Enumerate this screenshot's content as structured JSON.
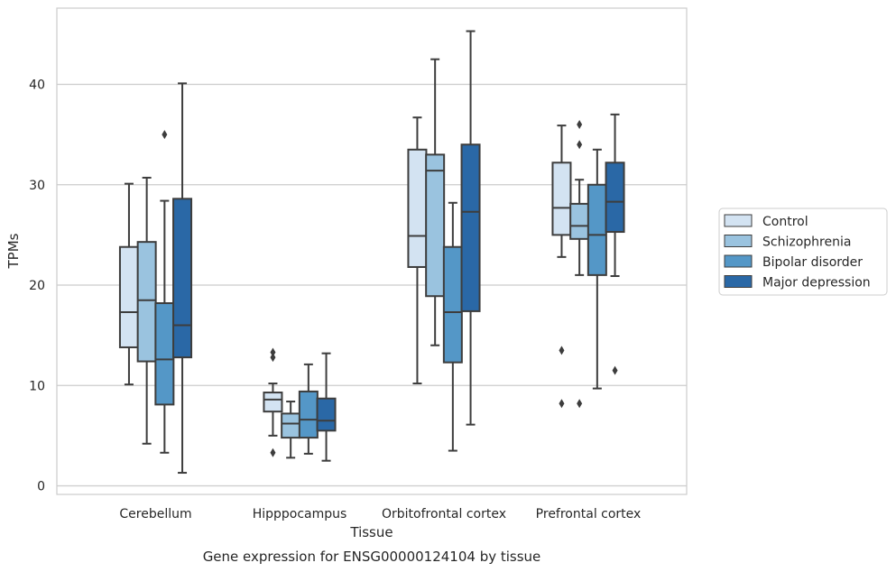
{
  "chart_data": {
    "type": "box",
    "caption": "Gene expression for ENSG00000124104 by tissue",
    "xlabel": "Tissue",
    "ylabel": "TPMs",
    "ylim": [
      -0.8,
      47.5
    ],
    "yticks": [
      0,
      10,
      20,
      30,
      40
    ],
    "grid": "horizontal",
    "legend_position": "right",
    "categories": [
      "Cerebellum",
      "Hipppocampus",
      "Orbitofrontal cortex",
      "Prefrontal cortex"
    ],
    "series": [
      {
        "name": "Control",
        "color": "#d3e3f2",
        "boxes": [
          {
            "whislo": 10.1,
            "q1": 13.8,
            "med": 17.3,
            "q3": 23.8,
            "whishi": 30.1,
            "fliers": []
          },
          {
            "whislo": 5.0,
            "q1": 7.4,
            "med": 8.6,
            "q3": 9.3,
            "whishi": 10.2,
            "fliers": [
              13.3,
              12.8,
              3.3
            ]
          },
          {
            "whislo": 10.2,
            "q1": 21.8,
            "med": 24.9,
            "q3": 33.5,
            "whishi": 36.7,
            "fliers": []
          },
          {
            "whislo": 22.8,
            "q1": 25.0,
            "med": 27.7,
            "q3": 32.2,
            "whishi": 35.9,
            "fliers": [
              13.5,
              8.2
            ]
          }
        ]
      },
      {
        "name": "Schizophrenia",
        "color": "#9ac3df",
        "boxes": [
          {
            "whislo": 4.2,
            "q1": 12.4,
            "med": 18.5,
            "q3": 24.3,
            "whishi": 30.7,
            "fliers": []
          },
          {
            "whislo": 2.8,
            "q1": 4.8,
            "med": 6.2,
            "q3": 7.2,
            "whishi": 8.4,
            "fliers": []
          },
          {
            "whislo": 14.0,
            "q1": 18.9,
            "med": 31.4,
            "q3": 33.0,
            "whishi": 42.5,
            "fliers": []
          },
          {
            "whislo": 21.0,
            "q1": 24.6,
            "med": 25.9,
            "q3": 28.1,
            "whishi": 30.5,
            "fliers": [
              36.0,
              34.0,
              8.2
            ]
          }
        ]
      },
      {
        "name": "Bipolar disorder",
        "color": "#5497c7",
        "boxes": [
          {
            "whislo": 3.3,
            "q1": 8.1,
            "med": 12.6,
            "q3": 18.2,
            "whishi": 28.4,
            "fliers": [
              35.0
            ]
          },
          {
            "whislo": 3.2,
            "q1": 4.8,
            "med": 6.6,
            "q3": 9.4,
            "whishi": 12.1,
            "fliers": []
          },
          {
            "whislo": 3.5,
            "q1": 12.3,
            "med": 17.3,
            "q3": 23.8,
            "whishi": 28.2,
            "fliers": []
          },
          {
            "whislo": 9.7,
            "q1": 21.0,
            "med": 25.0,
            "q3": 30.0,
            "whishi": 33.5,
            "fliers": []
          }
        ]
      },
      {
        "name": "Major depression",
        "color": "#2a68a6",
        "boxes": [
          {
            "whislo": 1.3,
            "q1": 12.8,
            "med": 16.0,
            "q3": 28.6,
            "whishi": 40.1,
            "fliers": []
          },
          {
            "whislo": 2.5,
            "q1": 5.5,
            "med": 6.5,
            "q3": 8.7,
            "whishi": 13.2,
            "fliers": []
          },
          {
            "whislo": 6.1,
            "q1": 17.4,
            "med": 27.3,
            "q3": 34.0,
            "whishi": 45.3,
            "fliers": []
          },
          {
            "whislo": 20.9,
            "q1": 25.3,
            "med": 28.3,
            "q3": 32.2,
            "whishi": 37.0,
            "fliers": [
              11.5
            ]
          }
        ]
      }
    ]
  }
}
